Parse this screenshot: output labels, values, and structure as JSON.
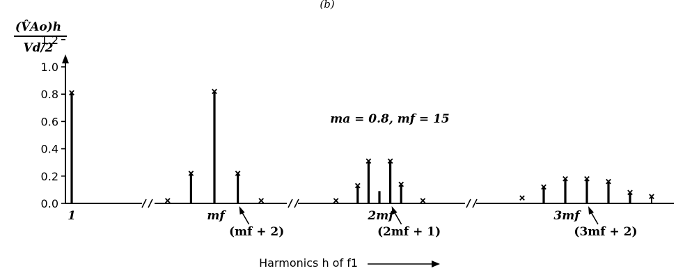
{
  "chart_data": {
    "type": "bar",
    "top_caption": "(b)",
    "ylabel_numerator": "(V̂Ao)h",
    "ylabel_denominator": "Vd/2",
    "ylim": [
      0,
      1.3
    ],
    "y_ticks": [
      0.0,
      0.2,
      0.4,
      0.6,
      0.8,
      1.0,
      1.2
    ],
    "y_tick_labels": [
      "0.0",
      "0.2",
      "0.4",
      "0.6",
      "0.8",
      "1.0",
      "1.2"
    ],
    "annotation": "ma = 0.8, mf = 15",
    "xlabel": "Harmonics h of f1",
    "x_labels": [
      {
        "text": "1",
        "at_h": 1
      },
      {
        "text": "mf",
        "at_h": 15
      },
      {
        "text": "2mf",
        "at_h": 30
      },
      {
        "text": "3mf",
        "at_h": 45
      }
    ],
    "callouts": [
      {
        "text": "(mf + 2)",
        "at_h": 17
      },
      {
        "text": "(2mf + 1)",
        "at_h": 31
      },
      {
        "text": "(3mf + 2)",
        "at_h": 47
      }
    ],
    "series": [
      {
        "points": [
          {
            "h": 1,
            "value": 0.81
          },
          {
            "h": 11,
            "value": 0.02
          },
          {
            "h": 13,
            "value": 0.22
          },
          {
            "h": 15,
            "value": 0.82
          },
          {
            "h": 17,
            "value": 0.22
          },
          {
            "h": 19,
            "value": 0.02
          },
          {
            "h": 26,
            "value": 0.02
          },
          {
            "h": 28,
            "value": 0.13
          },
          {
            "h": 29,
            "value": 0.31
          },
          {
            "h": 30,
            "value": 0.09
          },
          {
            "h": 31,
            "value": 0.31
          },
          {
            "h": 32,
            "value": 0.14
          },
          {
            "h": 34,
            "value": 0.02
          },
          {
            "h": 41,
            "value": 0.04
          },
          {
            "h": 43,
            "value": 0.12
          },
          {
            "h": 45,
            "value": 0.18
          },
          {
            "h": 47,
            "value": 0.18
          },
          {
            "h": 49,
            "value": 0.16
          },
          {
            "h": 51,
            "value": 0.08
          },
          {
            "h": 53,
            "value": 0.05
          }
        ]
      }
    ]
  }
}
